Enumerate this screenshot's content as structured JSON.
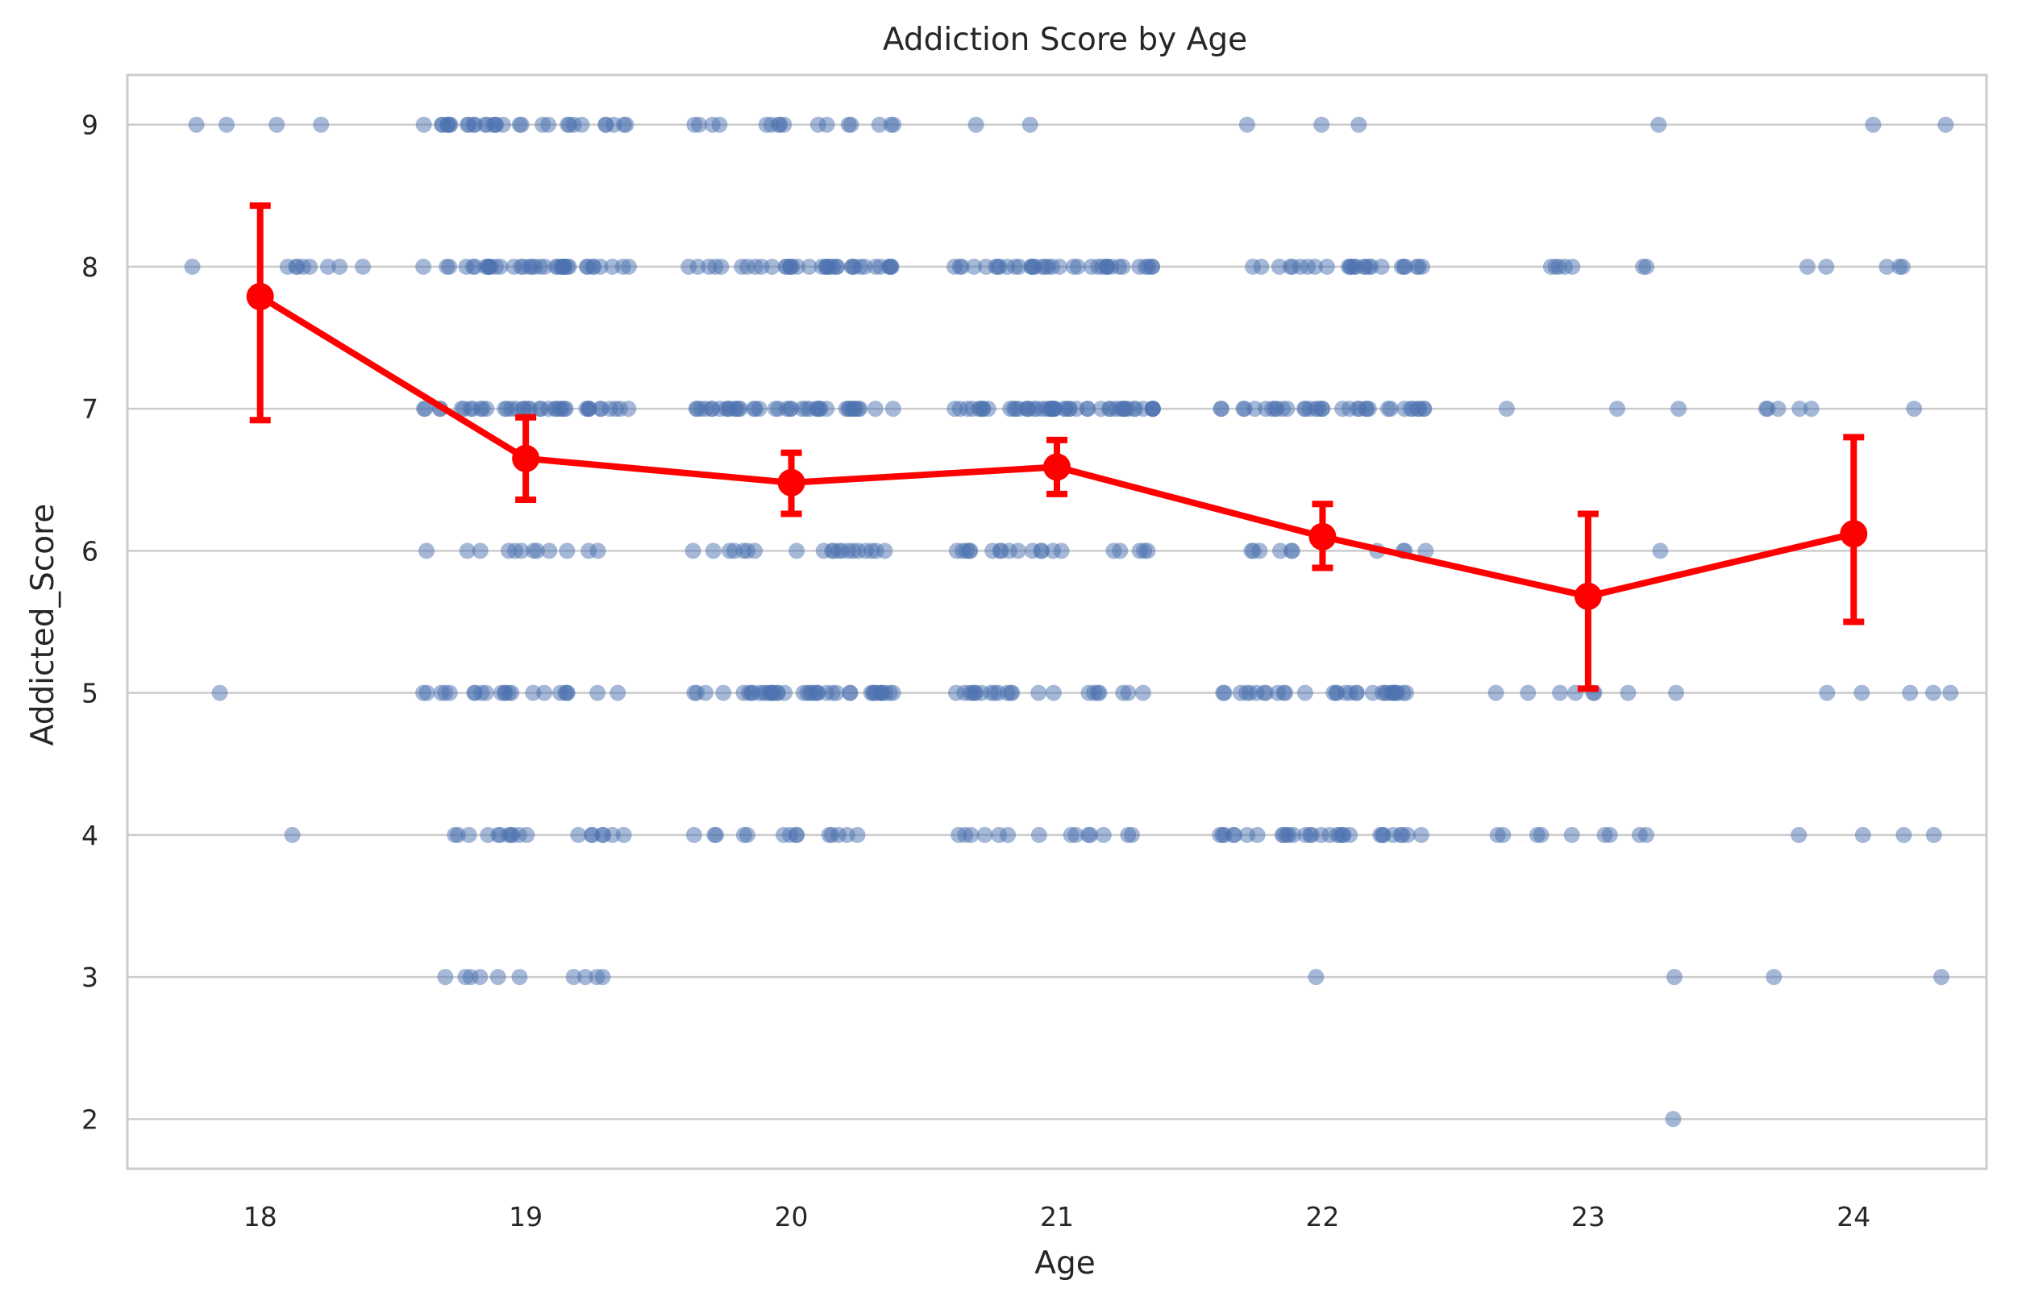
{
  "chart_data": {
    "type": "scatter",
    "title": "Addiction Score by Age",
    "xlabel": "Age",
    "ylabel": "Addicted_Score",
    "categories": [
      "18",
      "19",
      "20",
      "21",
      "22",
      "23",
      "24"
    ],
    "yticks": [
      "2",
      "3",
      "4",
      "5",
      "6",
      "7",
      "8",
      "9"
    ],
    "ylim": [
      1.65,
      9.35
    ],
    "grid": true,
    "legend": "none",
    "colors": {
      "points": "#4c72b0",
      "mean": "#ff0000",
      "grid": "#cccccc"
    },
    "strip_points": [
      {
        "age": "18",
        "scores": {
          "9": 4,
          "8": 9,
          "5": 1,
          "4": 1
        }
      },
      {
        "age": "19",
        "scores": {
          "9": 30,
          "8": 38,
          "7": 38,
          "6": 12,
          "5": 22,
          "4": 18,
          "3": 10
        }
      },
      {
        "age": "20",
        "scores": {
          "9": 16,
          "8": 36,
          "7": 40,
          "6": 20,
          "5": 40,
          "4": 14
        }
      },
      {
        "age": "21",
        "scores": {
          "9": 2,
          "8": 36,
          "7": 50,
          "6": 20,
          "5": 22,
          "4": 14
        }
      },
      {
        "age": "22",
        "scores": {
          "9": 3,
          "8": 25,
          "7": 34,
          "6": 10,
          "5": 30,
          "4": 30,
          "3": 1
        }
      },
      {
        "age": "23",
        "scores": {
          "9": 1,
          "8": 7,
          "7": 3,
          "6": 1,
          "5": 8,
          "4": 9,
          "3": 1,
          "2": 1
        }
      },
      {
        "age": "24",
        "scores": {
          "9": 2,
          "8": 5,
          "7": 6,
          "5": 5,
          "4": 4,
          "3": 2
        }
      }
    ],
    "series": [
      {
        "values": [
          7.79,
          6.65,
          6.48,
          6.59,
          6.1,
          5.68,
          6.12
        ],
        "ci_low": [
          6.92,
          6.36,
          6.26,
          6.4,
          5.88,
          5.03,
          5.5
        ],
        "ci_high": [
          8.43,
          6.94,
          6.69,
          6.78,
          6.33,
          6.26,
          6.8
        ]
      }
    ]
  }
}
